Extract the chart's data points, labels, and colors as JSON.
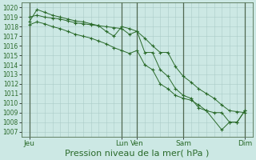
{
  "bg_color": "#cce8e4",
  "grid_color": "#aaccc8",
  "line_color": "#2a6a2a",
  "xlabel": "Pression niveau de la mer( hPa )",
  "xlabel_fontsize": 8,
  "ylim": [
    1006.5,
    1020.5
  ],
  "yticks": [
    1007,
    1008,
    1009,
    1010,
    1011,
    1012,
    1013,
    1014,
    1015,
    1016,
    1017,
    1018,
    1019,
    1020
  ],
  "xtick_labels": [
    "Jeu",
    "Lun",
    "Ven",
    "Sam",
    "Dim"
  ],
  "xtick_positions": [
    0,
    72,
    84,
    120,
    168
  ],
  "vline_positions": [
    0,
    72,
    84,
    120,
    168
  ],
  "xlim": [
    -6,
    174
  ],
  "series": [
    {
      "x": [
        0,
        6,
        12,
        18,
        24,
        30,
        36,
        42,
        48,
        54,
        60,
        66,
        72,
        78,
        84,
        90,
        96,
        102,
        108,
        114,
        120,
        126,
        132,
        138,
        144,
        150,
        156,
        162,
        168
      ],
      "y": [
        1019.0,
        1019.2,
        1019.0,
        1018.9,
        1018.8,
        1018.6,
        1018.4,
        1018.3,
        1018.2,
        1018.1,
        1018.0,
        1017.9,
        1017.8,
        1017.2,
        1017.5,
        1016.8,
        1016.0,
        1015.3,
        1015.3,
        1013.8,
        1012.8,
        1012.2,
        1011.5,
        1011.0,
        1010.5,
        1009.8,
        1009.2,
        1009.1,
        1009.0
      ]
    },
    {
      "x": [
        0,
        6,
        12,
        18,
        24,
        30,
        36,
        42,
        48,
        54,
        60,
        66,
        72,
        78,
        84,
        90,
        96,
        102,
        108,
        114,
        120,
        126,
        132,
        138,
        150,
        156,
        162,
        168
      ],
      "y": [
        1018.5,
        1019.8,
        1019.5,
        1019.2,
        1019.0,
        1018.8,
        1018.6,
        1018.5,
        1018.3,
        1018.1,
        1017.5,
        1017.0,
        1018.0,
        1017.8,
        1017.5,
        1015.3,
        1015.3,
        1013.5,
        1012.8,
        1011.5,
        1010.8,
        1010.5,
        1009.5,
        1009.2,
        1007.2,
        1008.0,
        1008.0,
        1009.2
      ]
    },
    {
      "x": [
        0,
        6,
        12,
        18,
        24,
        30,
        36,
        42,
        48,
        54,
        60,
        66,
        72,
        78,
        84,
        90,
        96,
        102,
        108,
        114,
        120,
        126,
        132,
        138,
        144,
        150,
        156,
        162,
        168
      ],
      "y": [
        1018.2,
        1018.5,
        1018.3,
        1018.0,
        1017.8,
        1017.5,
        1017.2,
        1017.0,
        1016.8,
        1016.5,
        1016.2,
        1015.8,
        1015.5,
        1015.2,
        1015.5,
        1014.0,
        1013.5,
        1012.0,
        1011.5,
        1010.8,
        1010.5,
        1010.3,
        1009.8,
        1009.2,
        1009.0,
        1009.0,
        1008.0,
        1008.0,
        1009.2
      ]
    }
  ]
}
